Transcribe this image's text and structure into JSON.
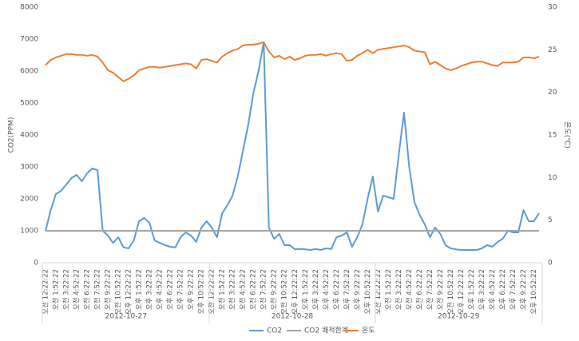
{
  "chart_data": {
    "type": "line",
    "y_label": "CO2(PPM)",
    "y2_label": "온도(℃)",
    "ylim": [
      0,
      8000
    ],
    "yticks": [
      0,
      1000,
      2000,
      3000,
      4000,
      5000,
      6000,
      7000,
      8000
    ],
    "y2lim": [
      0,
      30
    ],
    "y2ticks": [
      0,
      5,
      10,
      15,
      20,
      25,
      30
    ],
    "x_groups": [
      "2012-10-27",
      "2012-10-28",
      "2012-10-29"
    ],
    "categories": [
      "오전 12:22:22",
      null,
      "오전 1:52:22",
      null,
      "오전 3:22:22",
      null,
      "오전 4:52:22",
      null,
      "오전 6:22:22",
      null,
      "오전 7:52:22",
      null,
      "오전 9:22:22",
      null,
      "오전 10:52:22",
      null,
      "오후 12:22:22",
      null,
      "오후 1:52:22",
      null,
      "오후 3:22:22",
      null,
      "오후 4:52:22",
      null,
      "오후 6:22:22",
      null,
      "오후 7:52:22",
      null,
      "오후 9:22:22",
      null,
      "오후 10:52:22",
      null,
      "오전 12:22:22",
      null,
      "오전 1:52:22",
      null,
      "오전 3:22:22",
      null,
      "오전 4:52:22",
      null,
      "오전 6:22:22",
      null,
      "오전 7:52:22",
      null,
      "오전 9:22:22",
      null,
      "오전 10:52:22",
      null,
      "오후 12:22:22",
      null,
      "오후 1:52:22",
      null,
      "오후 3:22:22",
      null,
      "오후 4:52:22",
      null,
      "오후 6:22:22",
      null,
      "오후 7:52:22",
      null,
      "오후 9:22:22",
      null,
      "오후 10:52:22",
      null,
      "오전 12:22:22",
      null,
      "오전 1:52:22",
      null,
      "오전 3:22:22",
      null,
      "오전 4:52:22",
      null,
      "오전 6:22:22",
      null,
      "오전 7:52:22",
      null,
      "오전 9:22:22",
      null,
      "오전 10:52:22",
      null,
      "오후 12:22:22",
      null,
      "오후 1:52:22",
      null,
      "오후 3:22:22",
      null,
      "오후 4:52:22",
      null,
      "오후 6:22:22",
      null,
      "오후 7:52:22",
      null,
      "오후 9:22:22",
      null,
      "오후 10:52:22",
      null
    ],
    "series": [
      {
        "name": "CO2",
        "color": "#5b9bd5",
        "values": [
          1000,
          1650,
          2150,
          2250,
          2450,
          2650,
          2750,
          2550,
          2800,
          2950,
          2900,
          1000,
          850,
          620,
          800,
          480,
          450,
          700,
          1300,
          1400,
          1250,
          700,
          620,
          550,
          500,
          480,
          800,
          950,
          850,
          650,
          1100,
          1300,
          1100,
          800,
          1550,
          1800,
          2100,
          2700,
          3500,
          4300,
          5300,
          6000,
          6900,
          1100,
          750,
          900,
          550,
          550,
          420,
          430,
          420,
          400,
          430,
          400,
          450,
          430,
          800,
          850,
          950,
          500,
          800,
          1200,
          2000,
          2700,
          1600,
          2100,
          2050,
          2000,
          3400,
          4700,
          3000,
          1900,
          1500,
          1200,
          800,
          1100,
          900,
          550,
          450,
          420,
          400,
          400,
          400,
          400,
          450,
          550,
          500,
          650,
          750,
          1000,
          950,
          950,
          1650,
          1300,
          1300,
          1550
        ]
      },
      {
        "name": "CO2 쾌적한계",
        "color": "#a5a5a5",
        "values": [
          1000,
          1000,
          1000,
          1000,
          1000,
          1000,
          1000,
          1000,
          1000,
          1000,
          1000,
          1000,
          1000,
          1000,
          1000,
          1000,
          1000,
          1000,
          1000,
          1000,
          1000,
          1000,
          1000,
          1000,
          1000,
          1000,
          1000,
          1000,
          1000,
          1000,
          1000,
          1000,
          1000,
          1000,
          1000,
          1000,
          1000,
          1000,
          1000,
          1000,
          1000,
          1000,
          1000,
          1000,
          1000,
          1000,
          1000,
          1000,
          1000,
          1000,
          1000,
          1000,
          1000,
          1000,
          1000,
          1000,
          1000,
          1000,
          1000,
          1000,
          1000,
          1000,
          1000,
          1000,
          1000,
          1000,
          1000,
          1000,
          1000,
          1000,
          1000,
          1000,
          1000,
          1000,
          1000,
          1000,
          1000,
          1000,
          1000,
          1000,
          1000,
          1000,
          1000,
          1000,
          1000,
          1000,
          1000,
          1000,
          1000,
          1000,
          1000,
          1000,
          1000,
          1000,
          1000,
          1000
        ]
      },
      {
        "name": "온도",
        "color": "#ed7d31",
        "axis": "y2",
        "values": [
          23.2,
          23.8,
          24.1,
          24.3,
          24.5,
          24.5,
          24.4,
          24.4,
          24.3,
          24.4,
          24.2,
          23.5,
          22.6,
          22.3,
          21.8,
          21.3,
          21.6,
          22.0,
          22.6,
          22.8,
          23.0,
          23.0,
          22.9,
          23.0,
          23.1,
          23.2,
          23.3,
          23.4,
          23.3,
          22.8,
          23.8,
          23.9,
          23.7,
          23.5,
          24.2,
          24.6,
          24.9,
          25.1,
          25.5,
          25.6,
          25.6,
          25.7,
          25.9,
          24.8,
          24.1,
          24.3,
          23.9,
          24.2,
          23.8,
          24.0,
          24.3,
          24.4,
          24.4,
          24.5,
          24.3,
          24.5,
          24.6,
          24.5,
          23.7,
          23.8,
          24.3,
          24.6,
          25.0,
          24.6,
          25.0,
          25.1,
          25.2,
          25.3,
          25.4,
          25.5,
          25.3,
          24.9,
          24.8,
          24.7,
          23.3,
          23.6,
          23.2,
          22.8,
          22.6,
          22.8,
          23.1,
          23.3,
          23.5,
          23.6,
          23.6,
          23.4,
          23.2,
          23.1,
          23.5,
          23.5,
          23.5,
          23.6,
          24.1,
          24.1,
          24.0,
          24.2
        ]
      }
    ]
  }
}
